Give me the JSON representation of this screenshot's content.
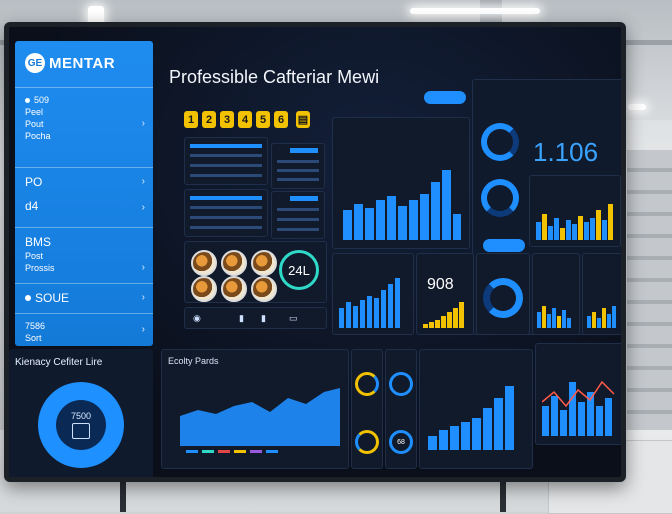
{
  "brand": {
    "logo": "GE",
    "name": "MENTAR"
  },
  "title": "Professible Cafteriar Mewi",
  "sidebar": {
    "groups": [
      {
        "lines": [
          "509",
          "Peel",
          "Pout",
          "Pocha"
        ]
      },
      {
        "lines": [
          "PO",
          "d4"
        ]
      },
      {
        "lines": [
          "BMS",
          "Post",
          "Prossis"
        ]
      },
      {
        "lines": [
          "SOUE"
        ]
      },
      {
        "lines": [
          "7586",
          "Sort"
        ]
      }
    ]
  },
  "info_panel": {
    "title": "Kienacy Cefiter Lire",
    "donut_value": "7500"
  },
  "digits": [
    "1",
    "2",
    "3",
    "4",
    "5",
    "6"
  ],
  "big_stat": {
    "value": "1.106"
  },
  "food_panel": {
    "value": "24L"
  },
  "mid_stat": {
    "value": "908"
  },
  "bottom_chart": {
    "title": "Ecolty Pards"
  },
  "ring_values": [
    "68"
  ],
  "colors": {
    "accent": "#1f8fff",
    "sidebar": "#137ad8",
    "highlight": "#f2c200"
  }
}
